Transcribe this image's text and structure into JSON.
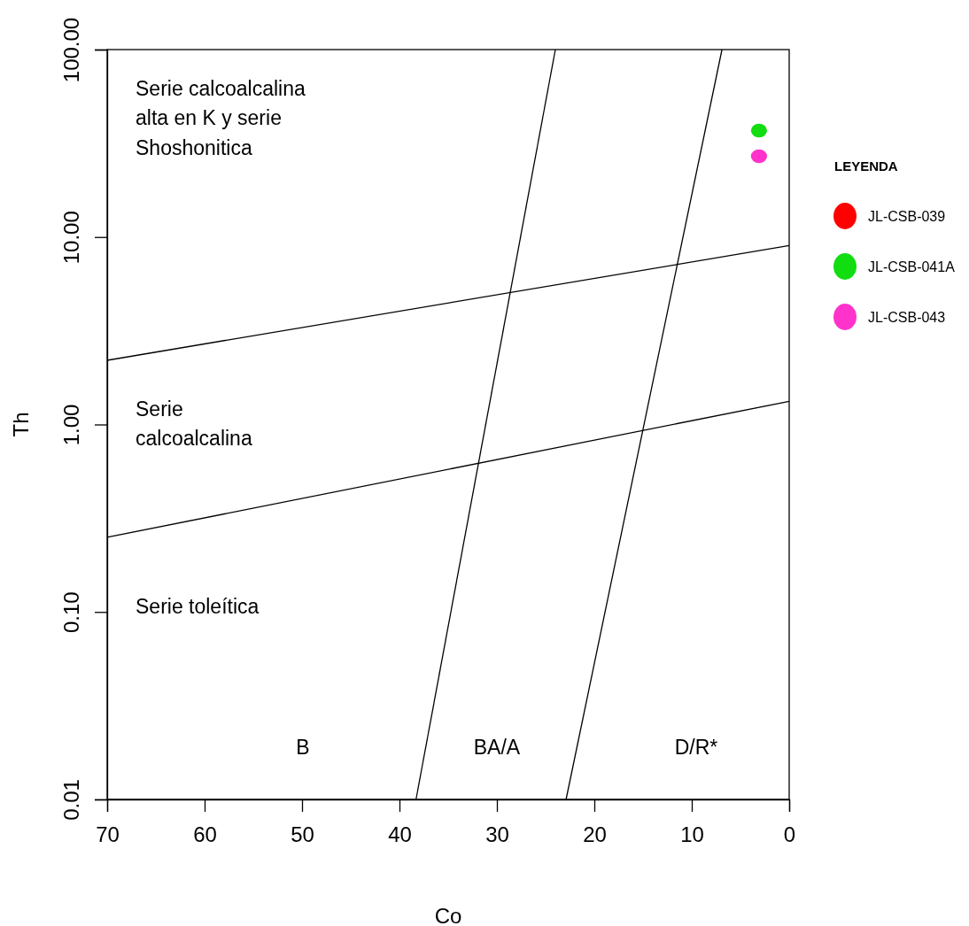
{
  "chart_data": {
    "type": "scatter",
    "xlabel": "Co",
    "ylabel": "Th",
    "log": "y",
    "xlim": [
      70,
      0
    ],
    "ylim": [
      0.01,
      100
    ],
    "xticks": [
      70,
      60,
      50,
      40,
      30,
      20,
      10,
      0
    ],
    "yticks": [
      {
        "value": 0.01,
        "label": "0.01"
      },
      {
        "value": 0.1,
        "label": "0.10"
      },
      {
        "value": 1,
        "label": "1.00"
      },
      {
        "value": 10,
        "label": "10.00"
      },
      {
        "value": 100,
        "label": "100.00"
      }
    ],
    "grid": false,
    "marker": "circle",
    "legend": "right",
    "legend_title": "LEYENDA",
    "series": [
      {
        "type": "line",
        "marker": "none",
        "color": "#000000",
        "x": [
          70,
          0
        ],
        "values": [
          2.2,
          9.0
        ]
      },
      {
        "type": "line",
        "marker": "none",
        "color": "#000000",
        "x": [
          70,
          0
        ],
        "values": [
          0.25,
          1.33
        ]
      },
      {
        "type": "line",
        "marker": "none",
        "color": "#000000",
        "x": [
          38.3,
          24.0
        ],
        "values": [
          0.01,
          100
        ]
      },
      {
        "type": "line",
        "marker": "none",
        "color": "#000000",
        "x": [
          22.9,
          6.9
        ],
        "values": [
          0.01,
          100
        ]
      },
      {
        "name": "JL-CSB-039",
        "color": "#ff0000",
        "values": [
          null
        ]
      },
      {
        "name": "JL-CSB-041A",
        "color": "#11dd11",
        "x": [
          3.1
        ],
        "values": [
          37
        ]
      },
      {
        "name": "JL-CSB-043",
        "color": "#ff33cc",
        "x": [
          3.1
        ],
        "values": [
          27
        ]
      }
    ],
    "annotations": [
      "Serie calcoalcalina\nalta en K y serie\nShoshonitica",
      "Serie\ncalcoalcalina",
      "Serie toleítica",
      "B",
      "BA/A",
      "D/R*"
    ]
  }
}
